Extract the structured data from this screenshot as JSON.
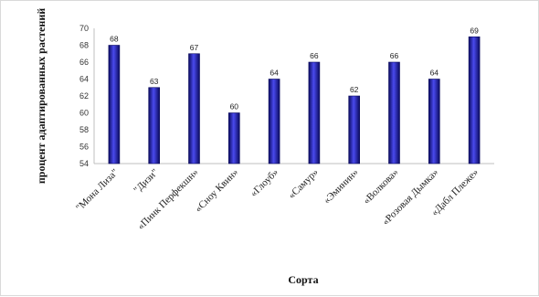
{
  "chart_data": {
    "type": "bar",
    "categories": [
      "\"Мона Лиза\"",
      "\"Дизи\"",
      "«Пинк Перфекшн»",
      "«Сноу Квин»",
      "«Глоуб»",
      "«Самур»",
      "«Эминин»",
      "«Волкова»",
      "«Розовая Дымка»",
      "«Дабл Плеже»"
    ],
    "values": [
      68,
      63,
      67,
      60,
      64,
      66,
      62,
      66,
      64,
      69
    ],
    "data_labels": [
      "68",
      "63",
      "67",
      "60",
      "64",
      "66",
      "62",
      "66",
      "64",
      "69"
    ],
    "title": "",
    "xlabel": "Сорта",
    "ylabel": "процент адаптированных растений",
    "ylim": [
      54,
      70
    ],
    "yticks": [
      54,
      56,
      58,
      60,
      62,
      64,
      66,
      68,
      70
    ],
    "grid": false,
    "legend": "none",
    "bar_color": "#1a1aa8",
    "bar_dark": "#0a0a5e",
    "bar_light": "#4a4aee"
  }
}
